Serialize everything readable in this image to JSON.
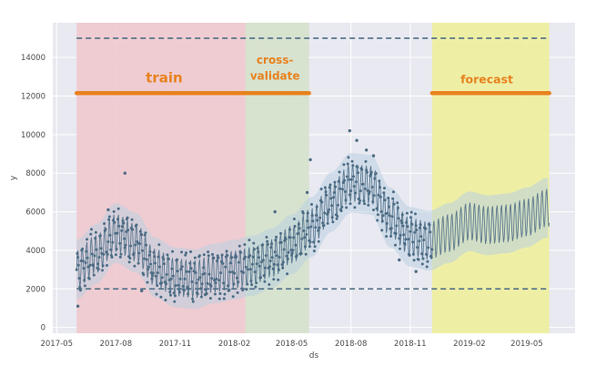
{
  "chart_data": {
    "type": "scatter",
    "xlabel": "ds",
    "ylabel": "y",
    "x_range": [
      "2017-04-25",
      "2019-07-15"
    ],
    "ylim": [
      -300,
      15800
    ],
    "x_ticks": [
      "2017-05",
      "2017-08",
      "2017-11",
      "2018-02",
      "2018-05",
      "2018-08",
      "2018-11",
      "2019-02",
      "2019-05"
    ],
    "y_ticks": [
      0,
      2000,
      4000,
      6000,
      8000,
      10000,
      12000,
      14000
    ],
    "grid": true,
    "colors": {
      "plot_bg": "#e9e9f1",
      "points": "#4e6d85",
      "forecast_band": "#b9cfe0",
      "train_region": "#efc9cf",
      "validate_region": "#d5e1cc",
      "forecast_region": "#eeef9e",
      "annotation": "#e8821f",
      "cap_floor": "#4e6d85"
    },
    "cap": 15000,
    "floor": 2000,
    "regions": [
      {
        "label": "train",
        "start": "2017-06-01",
        "end": "2018-02-18"
      },
      {
        "label": "cross-validate",
        "start": "2018-02-18",
        "end": "2018-05-28"
      },
      {
        "label": "forecast",
        "start": "2018-12-05",
        "end": "2019-06-05"
      }
    ],
    "annotations": [
      {
        "text": "train",
        "at_date": "2017-10-15",
        "y": 12700
      },
      {
        "text": "cross-",
        "at_date": "2018-04-05",
        "y": 13680
      },
      {
        "text": "validate",
        "at_date": "2018-04-05",
        "y": 12850
      },
      {
        "text": "forecast",
        "at_date": "2019-02-28",
        "y": 12650
      }
    ],
    "range_lines": [
      {
        "start": "2017-06-01",
        "end": "2018-05-28",
        "y": 12150
      },
      {
        "start": "2018-12-05",
        "end": "2019-06-05",
        "y": 12150
      }
    ],
    "trend_knots": {
      "dates": [
        "2017-06-01",
        "2017-07-01",
        "2017-08-01",
        "2017-09-01",
        "2017-10-01",
        "2017-11-01",
        "2017-12-01",
        "2018-01-01",
        "2018-02-01",
        "2018-03-01",
        "2018-04-01",
        "2018-05-01",
        "2018-06-01",
        "2018-07-01",
        "2018-08-01",
        "2018-09-01",
        "2018-10-01",
        "2018-11-01",
        "2018-12-01",
        "2019-01-01",
        "2019-02-01",
        "2019-03-01",
        "2019-04-01",
        "2019-05-01",
        "2019-06-01"
      ],
      "values": [
        3000,
        3800,
        4900,
        4400,
        3100,
        2600,
        2500,
        2800,
        3000,
        3200,
        3600,
        4300,
        5200,
        6500,
        7500,
        7400,
        5700,
        4700,
        4500,
        4900,
        5500,
        5300,
        5400,
        5700,
        6200
      ]
    },
    "weekly_amplitude": 1000,
    "outliers": [
      {
        "date": "2017-06-03",
        "y": 1100
      },
      {
        "date": "2017-07-20",
        "y": 6100
      },
      {
        "date": "2017-08-15",
        "y": 8000
      },
      {
        "date": "2017-09-10",
        "y": 1900
      },
      {
        "date": "2017-12-18",
        "y": 1700
      },
      {
        "date": "2018-04-05",
        "y": 6000
      },
      {
        "date": "2018-05-25",
        "y": 7000
      },
      {
        "date": "2018-05-30",
        "y": 8700
      },
      {
        "date": "2018-07-30",
        "y": 10200
      },
      {
        "date": "2018-08-10",
        "y": 9700
      },
      {
        "date": "2018-08-25",
        "y": 9200
      },
      {
        "date": "2018-09-05",
        "y": 8900
      },
      {
        "date": "2018-10-15",
        "y": 3500
      },
      {
        "date": "2018-11-10",
        "y": 2900
      }
    ]
  }
}
